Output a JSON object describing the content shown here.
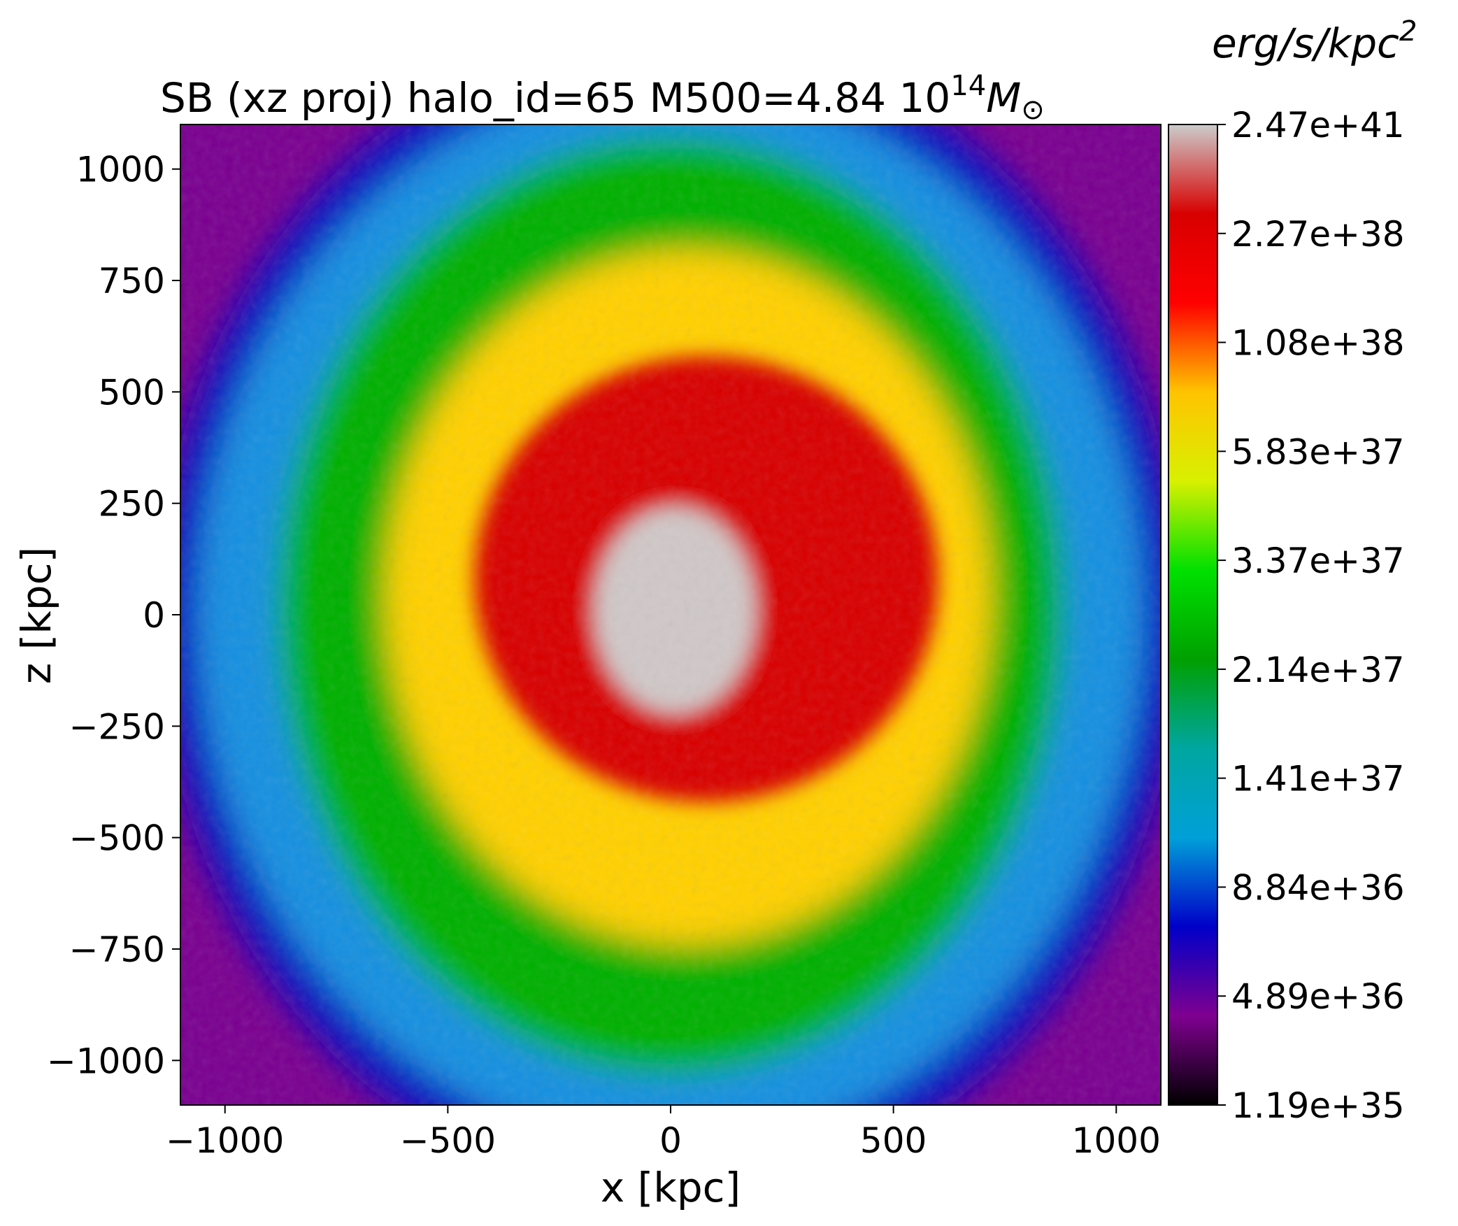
{
  "chart_data": {
    "type": "heatmap",
    "title": {
      "prefix": "SB (xz proj) halo_id=65 M500=4.84 10",
      "exponent": "14",
      "unit": "M",
      "unit_subscript": "⊙"
    },
    "xlabel": "x [kpc]",
    "ylabel": "z [kpc]",
    "xlim": [
      -1100,
      1100
    ],
    "ylim": [
      -1100,
      1100
    ],
    "x_ticks": [
      -1000,
      -500,
      0,
      500,
      1000
    ],
    "y_ticks": [
      -1000,
      -750,
      -500,
      -250,
      0,
      250,
      500,
      750,
      1000
    ],
    "colorbar": {
      "label_base": "erg/s/kpc",
      "label_exponent": "2",
      "ticks": [
        "1.19e+35",
        "4.89e+36",
        "8.84e+36",
        "1.41e+37",
        "2.14e+37",
        "3.37e+37",
        "5.83e+37",
        "1.08e+38",
        "2.27e+38",
        "2.47e+41"
      ],
      "colors": [
        "#000000",
        "#7f0090",
        "#0000c8",
        "#00a0d8",
        "#00a6a0",
        "#00a000",
        "#00e000",
        "#d8f000",
        "#ffc400",
        "#ff0000",
        "#d80000",
        "#cccccc"
      ],
      "colormap": "nipy_spectral"
    },
    "image_description_regions": [
      {
        "level": "core",
        "center": [
          10,
          10
        ],
        "radius": [
          180,
          230
        ],
        "color": "#d0c8c8"
      },
      {
        "level": "red",
        "center": [
          80,
          80
        ],
        "radius": [
          520,
          500
        ],
        "color": "#d80000"
      },
      {
        "level": "yellow-orange",
        "center": [
          40,
          40
        ],
        "radius": [
          680,
          780
        ],
        "color": "#ffd000"
      },
      {
        "level": "green",
        "center": [
          0,
          20
        ],
        "radius": [
          880,
          1050
        ],
        "color": "#00b000"
      },
      {
        "level": "cyan-blue",
        "center": [
          0,
          0
        ],
        "radius": [
          1060,
          1200
        ],
        "color": "#1890e0"
      }
    ]
  }
}
